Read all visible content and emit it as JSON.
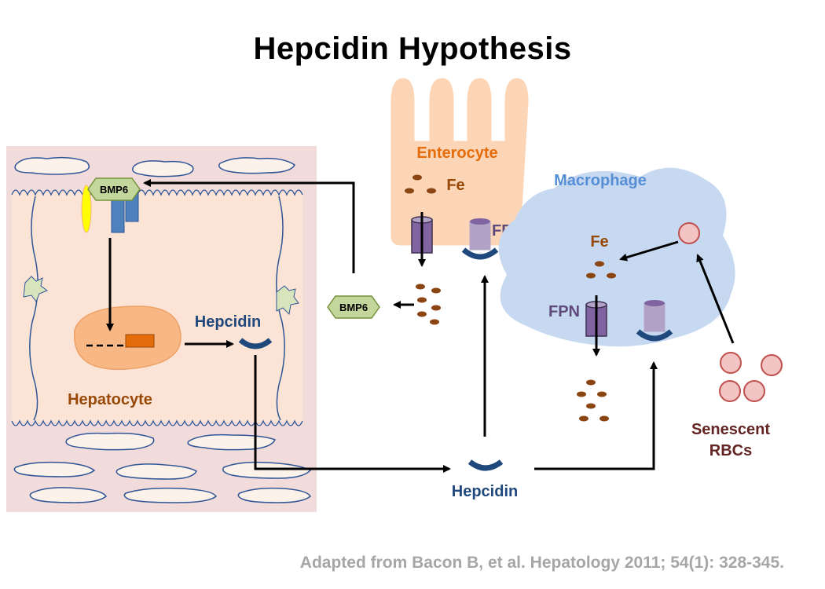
{
  "title": "Hepcidin Hypothesis",
  "citation": "Adapted from Bacon B, et al. Hepatology 2011; 54(1): 328-345.",
  "labels": {
    "enterocyte": "Enterocyte",
    "macrophage": "Macrophage",
    "hepatocyte": "Hepatocyte",
    "fe_enterocyte": "Fe",
    "fe_macrophage": "Fe",
    "fpn_enterocyte": "FPN",
    "fpn_macrophage": "FPN",
    "hepcidin_liver": "Hepcidin",
    "hepcidin_blood": "Hepcidin",
    "bmp6_receptor": "BMP6",
    "bmp6_released": "BMP6",
    "senescent_line1": "Senescent",
    "senescent_line2": "RBCs"
  },
  "colors": {
    "liver_bg": "#f2dcdb",
    "enterocyte_fill": "#fbd5b5",
    "macrophage_fill": "#c6d9f1",
    "hepatocyte_fill": "#f79646",
    "iron_dot": "#8b4513",
    "fpn_purple": "#8064a2",
    "hepcidin_blue": "#1f497d",
    "bmp6_green": "#c3d69b",
    "rbc_red": "#e6a6a6",
    "orange_text": "#e46c0a",
    "brown_text": "#984807",
    "macrophage_text": "#558ed5",
    "rbc_text": "#632523",
    "citation_grey": "#a6a6a6"
  }
}
